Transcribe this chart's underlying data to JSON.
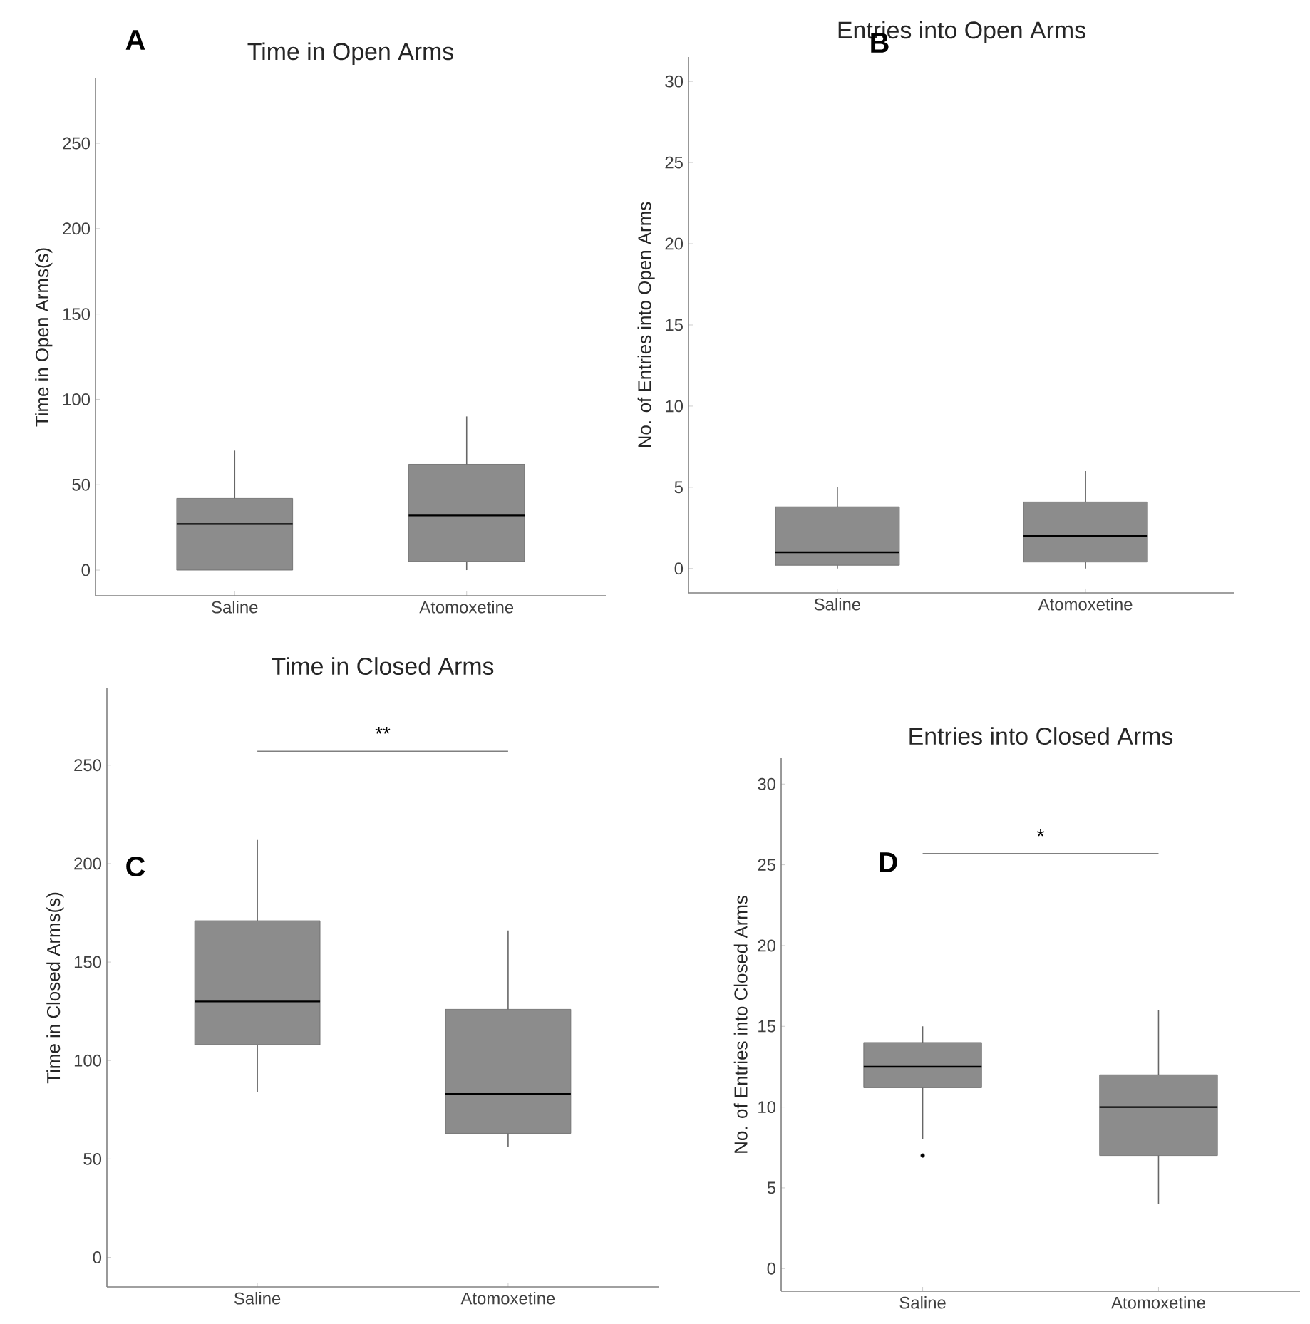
{
  "chart_data": [
    {
      "type": "box",
      "title": "Time in Open Arms",
      "ylabel": "Time in Open Arms(s)",
      "categories": [
        "Saline",
        "Atomoxetine"
      ],
      "color": "#8c8c8c",
      "boxes": [
        {
          "low": 0,
          "q1": 0,
          "median": 27,
          "q3": 42,
          "high": 70
        },
        {
          "low": 0,
          "q1": 5,
          "median": 32,
          "q3": 62,
          "high": 90
        }
      ],
      "ylim": [
        -15,
        288
      ],
      "yticks": [
        0,
        50,
        100,
        150,
        200,
        250
      ],
      "annotations": [
        "A"
      ]
    },
    {
      "type": "box",
      "title": "Entries into Open Arms",
      "ylabel": "No. of Entries into Open Arms",
      "categories": [
        "Saline",
        "Atomoxetine"
      ],
      "color": "#8c8c8c",
      "boxes": [
        {
          "low": 0,
          "q1": 0.2,
          "median": 1,
          "q3": 3.8,
          "high": 5
        },
        {
          "low": 0,
          "q1": 0.4,
          "median": 2,
          "q3": 4.1,
          "high": 6
        }
      ],
      "ylim": [
        -1.5,
        31.5
      ],
      "yticks": [
        0,
        5,
        10,
        15,
        20,
        25,
        30
      ],
      "annotations": [
        "B"
      ]
    },
    {
      "type": "box",
      "title": "Time in Closed Arms",
      "ylabel": "Time in Closed Arms(s)",
      "categories": [
        "Saline",
        "Atomoxetine"
      ],
      "color": "#8c8c8c",
      "boxes": [
        {
          "low": 84,
          "q1": 108,
          "median": 130,
          "q3": 171,
          "high": 212
        },
        {
          "low": 56,
          "q1": 63,
          "median": 83,
          "q3": 126,
          "high": 166
        }
      ],
      "ylim": [
        -15,
        289
      ],
      "yticks": [
        0,
        50,
        100,
        150,
        200,
        250
      ],
      "annotations": [
        "C",
        "**"
      ]
    },
    {
      "type": "box",
      "title": "Entries into Closed Arms",
      "ylabel": "No. of Entries into Closed Arms",
      "categories": [
        "Saline",
        "Atomoxetine"
      ],
      "color": "#8c8c8c",
      "boxes": [
        {
          "low": 8,
          "q1": 11.2,
          "median": 12.5,
          "q3": 14,
          "high": 15,
          "outliers": [
            7
          ]
        },
        {
          "low": 4,
          "q1": 7,
          "median": 10,
          "q3": 12,
          "high": 16
        }
      ],
      "ylim": [
        -1.4,
        31.6
      ],
      "yticks": [
        0,
        5,
        10,
        15,
        20,
        25,
        30
      ],
      "annotations": [
        "D",
        "*"
      ]
    }
  ]
}
